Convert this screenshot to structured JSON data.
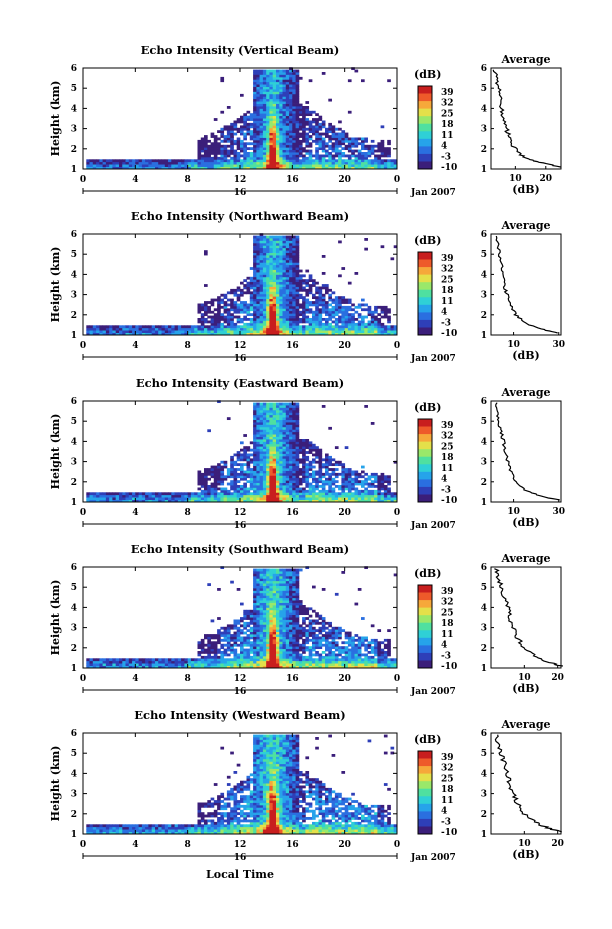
{
  "figure": {
    "bottom_xlabel": "Local Time",
    "colors": {
      "colormap": [
        "#3b1e7a",
        "#2e3fb8",
        "#2a6fe0",
        "#26a3ea",
        "#2fd0d6",
        "#4fe0a0",
        "#9ae86a",
        "#e4e04a",
        "#f6a83a",
        "#ee5a2a",
        "#c81e1e"
      ],
      "background": "#ffffff",
      "axis": "#000000"
    }
  },
  "chart_data": [
    {
      "type": "heatmap",
      "title": "Echo Intensity (Vertical Beam)",
      "ylabel": "Height (km)",
      "x_ticks": [
        "0",
        "4",
        "8",
        "12",
        "16",
        "20",
        "0"
      ],
      "xlim": [
        0,
        24
      ],
      "ylim": [
        1,
        6
      ],
      "y_ticks": [
        "1",
        "2",
        "3",
        "4",
        "5",
        "6"
      ],
      "date_label": "16",
      "date_suffix": "Jan 2007",
      "colorbar": {
        "label": "(dB)",
        "ticks": [
          "39",
          "32",
          "25",
          "18",
          "11",
          "4",
          "-3",
          "-10"
        ],
        "range": [
          -10,
          39
        ]
      },
      "average": {
        "title": "Average",
        "xlabel": "(dB)",
        "ylim": [
          1,
          6
        ],
        "xlim": [
          2,
          25
        ],
        "x_ticks": [
          "10",
          "20"
        ],
        "x_tick_values": [
          10,
          20
        ],
        "y_ticks": [
          "1",
          "2",
          "3",
          "4",
          "5",
          "6"
        ],
        "profile": {
          "height_km": [
            1.1,
            1.3,
            1.5,
            1.8,
            2.2,
            2.6,
            3.0,
            3.5,
            4.0,
            4.5,
            5.0,
            5.5,
            6.0
          ],
          "db": [
            25,
            19,
            14,
            11,
            9,
            8,
            7,
            6,
            5.5,
            5,
            4.5,
            4,
            3
          ]
        }
      }
    },
    {
      "type": "heatmap",
      "title": "Echo Intensity (Northward Beam)",
      "ylabel": "Height (km)",
      "x_ticks": [
        "0",
        "4",
        "8",
        "12",
        "16",
        "20",
        "0"
      ],
      "xlim": [
        0,
        24
      ],
      "ylim": [
        1,
        6
      ],
      "y_ticks": [
        "1",
        "2",
        "3",
        "4",
        "5",
        "6"
      ],
      "date_label": "16",
      "date_suffix": "Jan 2007",
      "colorbar": {
        "label": "(dB)",
        "ticks": [
          "39",
          "32",
          "25",
          "18",
          "11",
          "4",
          "-3",
          "-10"
        ],
        "range": [
          -10,
          39
        ]
      },
      "average": {
        "title": "Average",
        "xlabel": "(dB)",
        "ylim": [
          1,
          6
        ],
        "xlim": [
          0,
          31
        ],
        "x_ticks": [
          "10",
          "30"
        ],
        "x_tick_values": [
          10,
          30
        ],
        "y_ticks": [
          "1",
          "2",
          "3",
          "4",
          "5",
          "6"
        ],
        "profile": {
          "height_km": [
            1.1,
            1.3,
            1.6,
            2.0,
            2.4,
            2.8,
            3.2,
            3.7,
            4.2,
            4.8,
            5.4,
            6.0
          ],
          "db": [
            30,
            22,
            15,
            11,
            9,
            8,
            6.5,
            5.5,
            5,
            4,
            3,
            2
          ]
        }
      }
    },
    {
      "type": "heatmap",
      "title": "Echo Intensity (Eastward Beam)",
      "ylabel": "Height (km)",
      "x_ticks": [
        "0",
        "4",
        "8",
        "12",
        "16",
        "20",
        "0"
      ],
      "xlim": [
        0,
        24
      ],
      "ylim": [
        1,
        6
      ],
      "y_ticks": [
        "1",
        "2",
        "3",
        "4",
        "5",
        "6"
      ],
      "date_label": "16",
      "date_suffix": "Jan 2007",
      "colorbar": {
        "label": "(dB)",
        "ticks": [
          "39",
          "32",
          "25",
          "18",
          "11",
          "4",
          "-3",
          "-10"
        ],
        "range": [
          -10,
          39
        ]
      },
      "average": {
        "title": "Average",
        "xlabel": "(dB)",
        "ylim": [
          1,
          6
        ],
        "xlim": [
          0,
          31
        ],
        "x_ticks": [
          "10",
          "30"
        ],
        "x_tick_values": [
          10,
          30
        ],
        "y_ticks": [
          "1",
          "2",
          "3",
          "4",
          "5",
          "6"
        ],
        "profile": {
          "height_km": [
            1.1,
            1.3,
            1.6,
            2.0,
            2.5,
            3.0,
            3.5,
            4.0,
            4.5,
            5.0,
            5.5,
            6.0
          ],
          "db": [
            30,
            22,
            15,
            11,
            9,
            7.5,
            6.5,
            5.5,
            4.5,
            3.5,
            2.5,
            2
          ]
        }
      }
    },
    {
      "type": "heatmap",
      "title": "Echo Intensity (Southward Beam)",
      "ylabel": "Height (km)",
      "x_ticks": [
        "0",
        "4",
        "8",
        "12",
        "16",
        "20",
        "0"
      ],
      "xlim": [
        0,
        24
      ],
      "ylim": [
        1,
        6
      ],
      "y_ticks": [
        "1",
        "2",
        "3",
        "4",
        "5",
        "6"
      ],
      "date_label": "16",
      "date_suffix": "Jan 2007",
      "colorbar": {
        "label": "(dB)",
        "ticks": [
          "39",
          "32",
          "25",
          "18",
          "11",
          "4",
          "-3",
          "-10"
        ],
        "range": [
          -10,
          39
        ]
      },
      "average": {
        "title": "Average",
        "xlabel": "(dB)",
        "ylim": [
          1,
          6
        ],
        "xlim": [
          0,
          21
        ],
        "x_ticks": [
          "10",
          "20"
        ],
        "x_tick_values": [
          10,
          20
        ],
        "y_ticks": [
          "1",
          "2",
          "3",
          "4",
          "5",
          "6"
        ],
        "profile": {
          "height_km": [
            1.1,
            1.3,
            1.6,
            2.0,
            2.5,
            3.0,
            3.5,
            4.0,
            4.5,
            5.0,
            5.5,
            6.0
          ],
          "db": [
            21,
            17,
            13,
            10,
            8,
            6.5,
            5.5,
            5,
            4,
            3,
            2,
            1.5
          ]
        }
      }
    },
    {
      "type": "heatmap",
      "title": "Echo Intensity (Westward Beam)",
      "ylabel": "Height (km)",
      "x_ticks": [
        "0",
        "4",
        "8",
        "12",
        "16",
        "20",
        "0"
      ],
      "xlim": [
        0,
        24
      ],
      "ylim": [
        1,
        6
      ],
      "y_ticks": [
        "1",
        "2",
        "3",
        "4",
        "5",
        "6"
      ],
      "date_label": "16",
      "date_suffix": "Jan 2007",
      "colorbar": {
        "label": "(dB)",
        "ticks": [
          "39",
          "32",
          "25",
          "18",
          "11",
          "4",
          "-3",
          "-10"
        ],
        "range": [
          -10,
          39
        ]
      },
      "average": {
        "title": "Average",
        "xlabel": "(dB)",
        "ylim": [
          1,
          6
        ],
        "xlim": [
          0,
          21
        ],
        "x_ticks": [
          "10",
          "20"
        ],
        "x_tick_values": [
          10,
          20
        ],
        "y_ticks": [
          "1",
          "2",
          "3",
          "4",
          "5",
          "6"
        ],
        "profile": {
          "height_km": [
            1.1,
            1.3,
            1.6,
            2.0,
            2.5,
            3.0,
            3.5,
            4.0,
            4.5,
            5.0,
            5.5,
            6.0
          ],
          "db": [
            21,
            17,
            13,
            10,
            8,
            6.5,
            5.5,
            5,
            4,
            3,
            2,
            1.5
          ]
        }
      }
    }
  ]
}
